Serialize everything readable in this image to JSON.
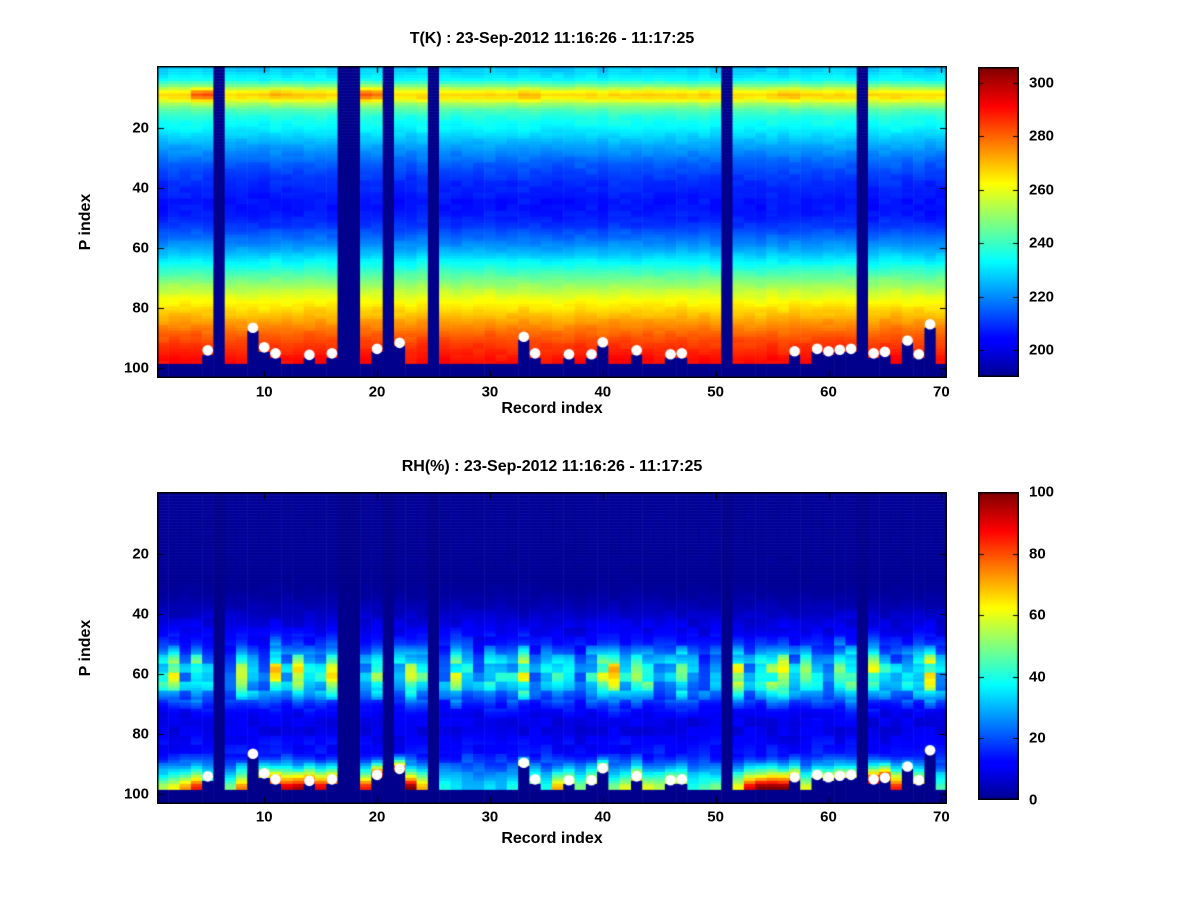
{
  "chart_data": [
    {
      "type": "heatmap",
      "title": "T(K) : 23-Sep-2012 11:16:26 - 11:17:25",
      "xlabel": "Record index",
      "ylabel": "P index",
      "value_name": "T",
      "units": "K",
      "x_range": [
        1,
        70
      ],
      "p_range": [
        1,
        103
      ],
      "y_inverted": true,
      "x_ticks": [
        10,
        20,
        30,
        40,
        50,
        60,
        70
      ],
      "y_ticks": [
        20,
        40,
        60,
        80,
        100
      ],
      "colormap": "jet",
      "caxis": [
        190,
        306
      ],
      "colorbar_range": [
        190,
        306
      ],
      "colorbar_ticks": [
        200,
        220,
        240,
        260,
        280,
        300
      ],
      "missing_records": [
        6,
        17,
        18,
        21,
        25,
        51,
        63
      ],
      "bottom_missing_start_p": 98.5,
      "profile_p": [
        0,
        2,
        4,
        6,
        8,
        9,
        10,
        11,
        12,
        14,
        16,
        18,
        20,
        23,
        26,
        29,
        32,
        35,
        38,
        41,
        44,
        47,
        50,
        53,
        56,
        59,
        62,
        65,
        68,
        71,
        74,
        77,
        80,
        83,
        86,
        89,
        92,
        95,
        97
      ],
      "profile_v": [
        227,
        230,
        234,
        247,
        263,
        267,
        265,
        259,
        252,
        243,
        238,
        235,
        233,
        228,
        223,
        219,
        215,
        212,
        209.5,
        208,
        206.5,
        206.5,
        208,
        211,
        216,
        221,
        227,
        234,
        241,
        248,
        255,
        261,
        266,
        271,
        276,
        281,
        285,
        288,
        290
      ],
      "band_boost": {
        "4": 14,
        "5": 16,
        "10": 3,
        "11": 4,
        "12": 4,
        "13": 3,
        "19": 15,
        "20": 11,
        "33": 3,
        "34": 4,
        "56": 4,
        "57": 3
      },
      "surface_dots": {
        "5": 94,
        "9": 86.5,
        "10": 93,
        "11": 95,
        "14": 95.5,
        "16": 95,
        "20": 93.5,
        "22": 91.5,
        "33": 89.5,
        "34": 95,
        "37": 95.3,
        "39": 95.3,
        "40": 91.3,
        "43": 94,
        "46": 95.3,
        "47": 95,
        "57": 94.3,
        "59": 93.5,
        "60": 94.3,
        "61": 93.8,
        "62": 93.5,
        "64": 95,
        "65": 94.5,
        "67": 90.7,
        "68": 95.3,
        "69": 85.3
      }
    },
    {
      "type": "heatmap",
      "title": "RH(%) : 23-Sep-2012 11:16:26 - 11:17:25",
      "xlabel": "Record index",
      "ylabel": "P index",
      "value_name": "RH",
      "units": "%",
      "x_range": [
        1,
        70
      ],
      "p_range": [
        1,
        103
      ],
      "y_inverted": true,
      "x_ticks": [
        10,
        20,
        30,
        40,
        50,
        60,
        70
      ],
      "y_ticks": [
        20,
        40,
        60,
        80,
        100
      ],
      "colormap": "jet",
      "caxis": [
        0,
        100
      ],
      "colorbar_range": [
        0,
        100
      ],
      "colorbar_ticks": [
        0,
        20,
        40,
        60,
        80,
        100
      ],
      "missing_records": [
        6,
        17,
        18,
        21,
        25,
        51,
        63
      ],
      "bottom_missing_start_p": 98.5,
      "profile_p": [
        0,
        30,
        34,
        38,
        42,
        46,
        50,
        54,
        58,
        61,
        64,
        67,
        70,
        73,
        76,
        79,
        82,
        85,
        88,
        91,
        94,
        97
      ],
      "profile_v": [
        1,
        1,
        2,
        4,
        7,
        10,
        15,
        24,
        31,
        32,
        29,
        24,
        16,
        11,
        9,
        9,
        11,
        13,
        15,
        18,
        21,
        24
      ],
      "mid_band": [
        1.3,
        1.8,
        0.9,
        1.4,
        1.0,
        0,
        0.7,
        1.5,
        1.1,
        0.8,
        1.8,
        0.9,
        1.9,
        1.1,
        1.3,
        1.7,
        0,
        0,
        0.9,
        1.5,
        0,
        1.2,
        1.7,
        1.3,
        0,
        0.8,
        1.5,
        1.1,
        0.9,
        1.3,
        1.0,
        1.2,
        1.6,
        0.7,
        1.0,
        1.4,
        1.1,
        0.9,
        1.2,
        1.6,
        1.8,
        1.0,
        1.3,
        1.6,
        0.9,
        1.1,
        1.7,
        0.9,
        0.7,
        1.0,
        0,
        1.8,
        0.9,
        1.2,
        1.5,
        1.8,
        1.1,
        1.4,
        1.0,
        0.8,
        1.9,
        1.3,
        0,
        1.8,
        1.2,
        0.9,
        1.4,
        1.2,
        1.9,
        1.1
      ],
      "bottom_rh": [
        55,
        62,
        72,
        85,
        40,
        0,
        50,
        75,
        18,
        60,
        80,
        92,
        96,
        85,
        90,
        75,
        0,
        0,
        85,
        96,
        0,
        100,
        100,
        70,
        0,
        40,
        35,
        30,
        30,
        35,
        30,
        40,
        60,
        50,
        40,
        70,
        60,
        50,
        60,
        72,
        50,
        60,
        70,
        60,
        55,
        60,
        55,
        40,
        45,
        50,
        0,
        62,
        90,
        100,
        100,
        100,
        82,
        60,
        55,
        60,
        65,
        60,
        0,
        92,
        100,
        85,
        40,
        62,
        55,
        45
      ],
      "surface_dots": {
        "5": 94,
        "9": 86.5,
        "10": 93,
        "11": 95,
        "14": 95.5,
        "16": 95,
        "20": 93.5,
        "22": 91.5,
        "33": 89.5,
        "34": 95,
        "37": 95.3,
        "39": 95.3,
        "40": 91.3,
        "43": 94,
        "46": 95.3,
        "47": 95,
        "57": 94.3,
        "59": 93.5,
        "60": 94.3,
        "61": 93.8,
        "62": 93.5,
        "64": 95,
        "65": 94.5,
        "67": 90.7,
        "68": 95.3,
        "69": 85.3
      }
    }
  ]
}
